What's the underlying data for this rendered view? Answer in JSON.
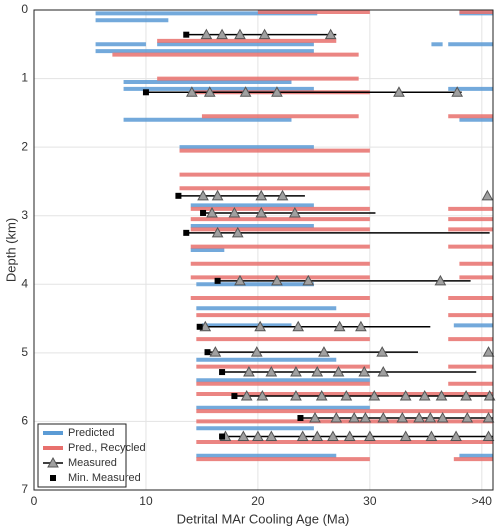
{
  "chart_data": {
    "type": "range",
    "xlabel": "Detrital MAr Cooling Age (Ma)",
    "ylabel": "Depth (km)",
    "xlim": [
      0,
      41
    ],
    "ylim": [
      0,
      7
    ],
    "y_inverted": true,
    "xticks": [
      0,
      10,
      20,
      30,
      {
        "value": 40,
        "label": ">40"
      }
    ],
    "yticks": [
      0,
      1,
      2,
      3,
      4,
      5,
      6,
      7
    ],
    "grid": true,
    "legend": "lower left",
    "series": [
      {
        "name": "Predicted",
        "color": "#5b9bd5",
        "segments": [
          [
            0.05,
            5.5,
            25.3
          ],
          [
            0.05,
            38,
            41
          ],
          [
            0.15,
            5.5,
            12
          ],
          [
            0.5,
            5.5,
            10
          ],
          [
            0.5,
            11,
            25
          ],
          [
            0.5,
            35.5,
            36.5
          ],
          [
            0.5,
            37,
            41
          ],
          [
            0.6,
            5.5,
            25
          ],
          [
            1.05,
            8,
            23
          ],
          [
            1.15,
            8,
            25
          ],
          [
            1.15,
            37,
            41
          ],
          [
            1.6,
            8,
            23
          ],
          [
            1.6,
            38,
            41
          ],
          [
            2.0,
            13,
            25
          ],
          [
            2.85,
            14,
            25
          ],
          [
            3.15,
            14,
            25
          ],
          [
            3.5,
            14,
            17
          ],
          [
            4.0,
            14.5,
            25
          ],
          [
            4.35,
            14.5,
            27
          ],
          [
            4.6,
            15,
            23
          ],
          [
            4.6,
            37.5,
            41
          ],
          [
            5.1,
            14.5,
            27
          ],
          [
            5.4,
            14.5,
            30
          ],
          [
            5.8,
            14.5,
            30
          ],
          [
            6.1,
            14.5,
            25
          ],
          [
            6.5,
            14.5,
            27
          ],
          [
            6.5,
            38,
            41
          ]
        ]
      },
      {
        "name": "Pred., Recycled",
        "color": "#e8706d",
        "segments": [
          [
            0.03,
            20,
            30
          ],
          [
            0.03,
            38,
            41
          ],
          [
            0.45,
            11,
            27
          ],
          [
            0.65,
            7,
            29
          ],
          [
            1.0,
            11,
            29
          ],
          [
            1.2,
            14,
            30
          ],
          [
            1.55,
            15,
            29
          ],
          [
            1.55,
            37,
            41
          ],
          [
            2.05,
            13,
            30
          ],
          [
            2.4,
            13,
            30
          ],
          [
            2.6,
            13,
            30
          ],
          [
            2.9,
            14,
            30
          ],
          [
            2.9,
            37,
            41
          ],
          [
            3.05,
            14,
            30
          ],
          [
            3.05,
            37,
            41
          ],
          [
            3.2,
            14,
            30
          ],
          [
            3.2,
            37,
            41
          ],
          [
            3.45,
            14,
            30
          ],
          [
            3.45,
            37,
            41
          ],
          [
            3.7,
            14,
            30
          ],
          [
            3.7,
            38,
            41
          ],
          [
            3.9,
            14,
            30
          ],
          [
            3.9,
            38,
            41
          ],
          [
            4.2,
            14,
            30
          ],
          [
            4.2,
            37,
            41
          ],
          [
            4.45,
            14.5,
            30
          ],
          [
            4.45,
            37,
            41
          ],
          [
            4.8,
            14.5,
            30
          ],
          [
            4.8,
            37,
            41
          ],
          [
            5.2,
            14.5,
            30
          ],
          [
            5.2,
            37,
            41
          ],
          [
            5.45,
            14.5,
            30
          ],
          [
            5.45,
            37,
            41
          ],
          [
            5.6,
            14.5,
            41
          ],
          [
            5.85,
            14.5,
            41
          ],
          [
            6.0,
            14.5,
            41
          ],
          [
            6.3,
            14.5,
            41
          ],
          [
            6.55,
            14.5,
            30
          ],
          [
            6.55,
            37.5,
            41
          ]
        ]
      }
    ],
    "measured": {
      "name": "Measured",
      "min_name": "Min. Measured",
      "samples": [
        {
          "depth": 0.36,
          "min": 13.6,
          "range": [
            13.6,
            27
          ],
          "ages": [
            15.4,
            16.8,
            18.4,
            20.6,
            26.5
          ]
        },
        {
          "depth": 1.2,
          "min": 10.0,
          "range": [
            10.0,
            38.2
          ],
          "ages": [
            14.1,
            15.7,
            18.9,
            21.7,
            32.6,
            37.8
          ]
        },
        {
          "depth": 2.71,
          "min": 12.9,
          "range": [
            12.9,
            24.2
          ],
          "ages": [
            15.1,
            16.4,
            20.3,
            22.2,
            40.5
          ]
        },
        {
          "depth": 2.96,
          "min": 15.1,
          "range": [
            15.1,
            30.5
          ],
          "ages": [
            15.9,
            17.9,
            20.3,
            23.3
          ]
        },
        {
          "depth": 3.25,
          "min": 13.6,
          "range": [
            13.6,
            40.7
          ],
          "ages": [
            16.4,
            18.2
          ]
        },
        {
          "depth": 3.95,
          "min": 16.4,
          "range": [
            16.4,
            39
          ],
          "ages": [
            18.4,
            21.7,
            24.5,
            36.3
          ]
        },
        {
          "depth": 4.62,
          "min": 14.8,
          "range": [
            14.8,
            35.4
          ],
          "ages": [
            15.3,
            20.2,
            23.6,
            27.3,
            29.2
          ]
        },
        {
          "depth": 4.99,
          "min": 15.5,
          "range": [
            15.5,
            34.3
          ],
          "ages": [
            16.2,
            19.9,
            25.9,
            31.1,
            40.6
          ]
        },
        {
          "depth": 5.28,
          "min": 16.8,
          "range": [
            16.8,
            39.5
          ],
          "ages": [
            19.2,
            21.2,
            23.4,
            25.3,
            27.2,
            29.5,
            31.2
          ]
        },
        {
          "depth": 5.63,
          "min": 17.9,
          "range": [
            17.9,
            41
          ],
          "ages": [
            19,
            20.4,
            23.4,
            25.7,
            27.9,
            30.4,
            33.2,
            34.9,
            36.4,
            38.6,
            40.7
          ]
        },
        {
          "depth": 5.95,
          "min": 23.8,
          "range": [
            23.8,
            41
          ],
          "ages": [
            25.1,
            27,
            28.6,
            29.6,
            31.2,
            32.9,
            34.4,
            35.4,
            36.5,
            38.7,
            40.6
          ]
        },
        {
          "depth": 6.22,
          "min": 16.8,
          "range": [
            16.8,
            41
          ],
          "ages": [
            17.1,
            18.7,
            20,
            21.2,
            24,
            25.3,
            26.7,
            28.2,
            30,
            33.2,
            35.5,
            37.7,
            40.6
          ]
        }
      ]
    }
  }
}
